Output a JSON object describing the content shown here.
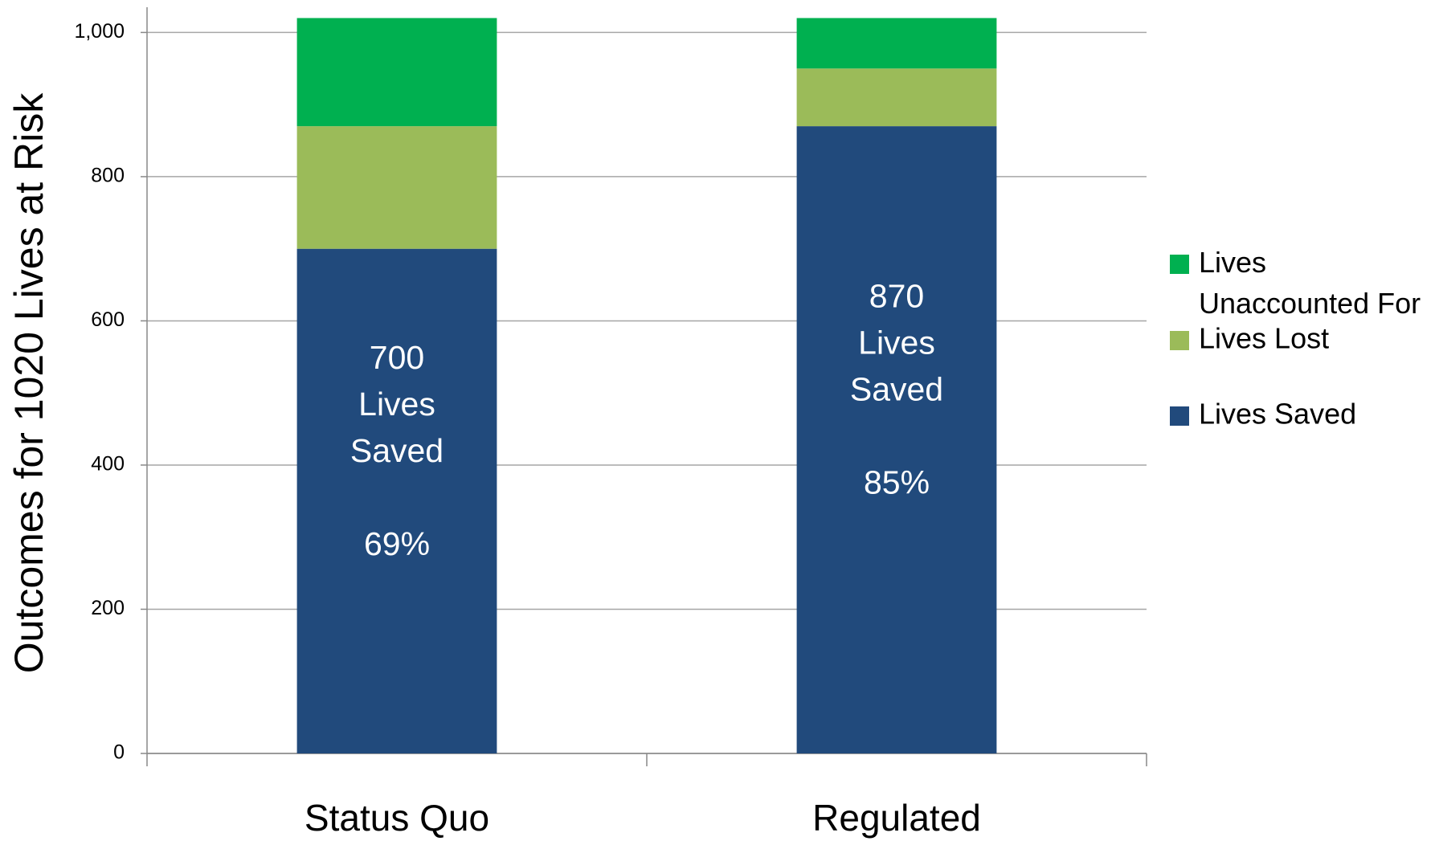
{
  "chart_data": {
    "type": "stacked_bar",
    "y_label": "Outcomes  for 1020 Lives at Risk",
    "categories": [
      "Status Quo",
      "Regulated"
    ],
    "series": [
      {
        "name": "Lives Saved",
        "color": "#214a7c",
        "values": [
          700,
          870
        ],
        "value_labels": [
          "700\nLives\nSaved\n\n69%",
          "870\nLives\nSaved\n\n85%"
        ]
      },
      {
        "name": "Lives Lost",
        "color": "#9bbb59",
        "values": [
          170,
          80
        ]
      },
      {
        "name": "Lives Unaccounted For",
        "color": "#00b050",
        "values": [
          150,
          70
        ]
      }
    ],
    "ylim": [
      0,
      1035
    ],
    "yticks": [
      0,
      200,
      400,
      600,
      800,
      {
        "value": 1000,
        "label": "1,000"
      }
    ],
    "grid": true,
    "legend": "right"
  }
}
